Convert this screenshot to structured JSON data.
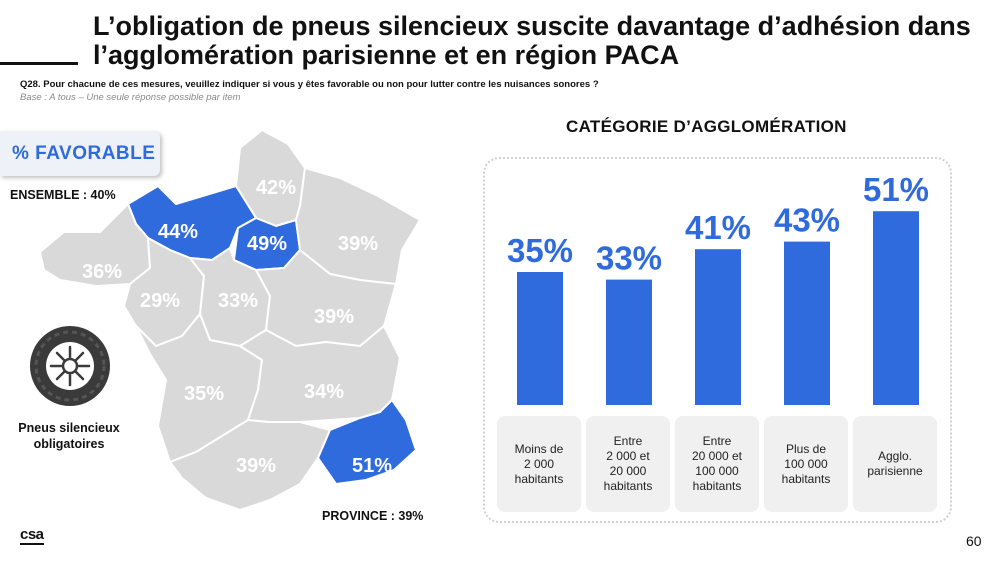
{
  "title": "L’obligation de pneus silencieux suscite davantage d’adhésion dans l’agglomération parisienne et en région PACA",
  "question": "Q28. Pour chacune de ces mesures, veuillez indiquer si vous y êtes favorable ou non pour lutter contre les nuisances sonores ?",
  "base": "Base : A tous – Une seule réponse possible par item",
  "favorable_label": "% FAVORABLE",
  "ensemble": "ENSEMBLE : 40%",
  "province": "PROVINCE : 39%",
  "tire_caption": "Pneus silencieux obligatoires",
  "logo": "csa",
  "page_number": "60",
  "colors": {
    "highlight": "#2f6bdc",
    "region_grey": "#d9d9d9",
    "bar": "#2f6bdc"
  },
  "icons": {
    "tire": "tire-icon"
  },
  "map_regions": [
    {
      "name": "Hauts-de-France",
      "value": "42%",
      "highlight": false
    },
    {
      "name": "Normandie",
      "value": "44%",
      "highlight": true
    },
    {
      "name": "Île-de-France",
      "value": "49%",
      "highlight": true
    },
    {
      "name": "Grand Est",
      "value": "39%",
      "highlight": false
    },
    {
      "name": "Bretagne",
      "value": "36%",
      "highlight": false
    },
    {
      "name": "Pays de la Loire",
      "value": "29%",
      "highlight": false
    },
    {
      "name": "Centre-Val de Loire",
      "value": "33%",
      "highlight": false
    },
    {
      "name": "Bourgogne-Franche-Comté",
      "value": "39%",
      "highlight": false
    },
    {
      "name": "Nouvelle-Aquitaine",
      "value": "35%",
      "highlight": false
    },
    {
      "name": "Auvergne-Rhône-Alpes",
      "value": "34%",
      "highlight": false
    },
    {
      "name": "Occitanie",
      "value": "39%",
      "highlight": false
    },
    {
      "name": "Provence-Alpes-Côte d'Azur",
      "value": "51%",
      "highlight": true
    }
  ],
  "chart_data": {
    "type": "bar",
    "title": "CATÉGORIE D’AGGLOMÉRATION",
    "categories": [
      "Moins de 2 000 habitants",
      "Entre 2 000 et 20 000 habitants",
      "Entre 20 000 et 100 000 habitants",
      "Plus de 100 000 habitants",
      "Agglo. parisienne"
    ],
    "category_lines": [
      [
        "Moins de",
        "2 000",
        "habitants"
      ],
      [
        "Entre",
        "2 000 et",
        "20 000",
        "habitants"
      ],
      [
        "Entre",
        "20 000 et",
        "100 000",
        "habitants"
      ],
      [
        "Plus de",
        "100 000",
        "habitants"
      ],
      [
        "Agglo.",
        "parisienne"
      ]
    ],
    "values": [
      35,
      33,
      41,
      43,
      51
    ],
    "data_labels": [
      "35%",
      "33%",
      "41%",
      "43%",
      "51%"
    ],
    "ylim": [
      0,
      60
    ],
    "grid": false,
    "legend": "none",
    "xlabel": "",
    "ylabel": ""
  }
}
